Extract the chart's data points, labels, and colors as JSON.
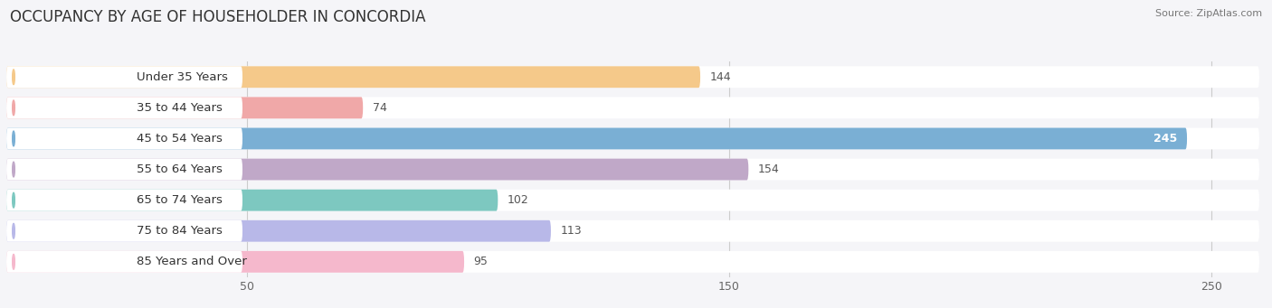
{
  "title": "OCCUPANCY BY AGE OF HOUSEHOLDER IN CONCORDIA",
  "source": "Source: ZipAtlas.com",
  "categories": [
    "Under 35 Years",
    "35 to 44 Years",
    "45 to 54 Years",
    "55 to 64 Years",
    "65 to 74 Years",
    "75 to 84 Years",
    "85 Years and Over"
  ],
  "values": [
    144,
    74,
    245,
    154,
    102,
    113,
    95
  ],
  "bar_colors": [
    "#f5c98a",
    "#f0a8a8",
    "#7aafd4",
    "#c0a8c8",
    "#7dc8c0",
    "#b8b8e8",
    "#f5b8cc"
  ],
  "xlim_max": 260,
  "bg_color": "#f5f5f8",
  "bar_bg_color": "#ebebf0",
  "bar_row_bg": "#ffffff",
  "label_bg": "#ffffff",
  "title_fontsize": 12,
  "label_fontsize": 9.5,
  "value_fontsize": 9,
  "tick_fontsize": 9
}
